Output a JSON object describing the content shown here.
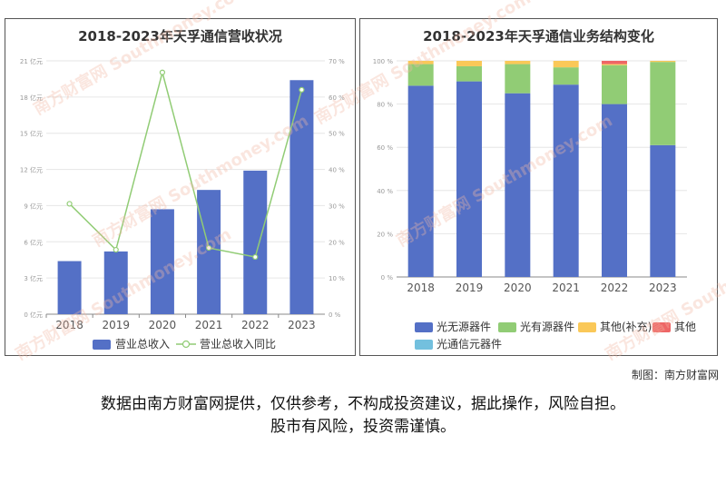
{
  "watermark": {
    "text_cn": "南方财富网",
    "text_en": "Southmoney.com"
  },
  "credit": "制图：南方财富网",
  "disclaimer_line1": "数据由南方财富网提供，仅供参考，不构成投资建议，据此操作，风险自担。",
  "disclaimer_line2": "股市有风险，投资需谨慎。",
  "chart_data": [
    {
      "type": "bar",
      "title": "2018-2023年天孚通信营收状况",
      "categories": [
        "2018",
        "2019",
        "2020",
        "2021",
        "2022",
        "2023"
      ],
      "ylim": [
        0,
        21
      ],
      "y2lim": [
        0,
        70
      ],
      "y_ticks": [
        0,
        3,
        6,
        9,
        12,
        15,
        18,
        21
      ],
      "y_tick_labels": [
        "0 亿元",
        "3 亿元",
        "6 亿元",
        "9 亿元",
        "12 亿元",
        "15 亿元",
        "18 亿元",
        "21 亿元"
      ],
      "y2_ticks": [
        0,
        10,
        20,
        30,
        40,
        50,
        60,
        70
      ],
      "y2_tick_labels": [
        "0 %",
        "10 %",
        "20 %",
        "30 %",
        "40 %",
        "50 %",
        "60 %",
        "70 %"
      ],
      "grid": true,
      "legend_position": "bottom",
      "series": [
        {
          "name": "营业总收入",
          "type": "bar",
          "axis": "left",
          "color": "#5470c6",
          "values": [
            4.4,
            5.2,
            8.7,
            10.3,
            11.9,
            19.4
          ]
        },
        {
          "name": "营业总收入同比",
          "type": "line",
          "axis": "right",
          "color": "#91cc75",
          "values": [
            30.5,
            17.8,
            66.8,
            18.3,
            15.8,
            62.0
          ]
        }
      ]
    },
    {
      "type": "bar",
      "stacked": true,
      "title": "2018-2023年天孚通信业务结构变化",
      "categories": [
        "2018",
        "2019",
        "2020",
        "2021",
        "2022",
        "2023"
      ],
      "ylim": [
        0,
        100
      ],
      "y_ticks": [
        0,
        20,
        40,
        60,
        80,
        100
      ],
      "y_tick_labels": [
        "0 %",
        "20 %",
        "40 %",
        "60 %",
        "80 %",
        "100 %"
      ],
      "grid": true,
      "legend_position": "bottom",
      "series": [
        {
          "name": "光无源器件",
          "color": "#5470c6",
          "values": [
            88.5,
            90.5,
            85.0,
            89.0,
            80.0,
            61.0
          ]
        },
        {
          "name": "光有源器件",
          "color": "#91cc75",
          "values": [
            10.0,
            7.0,
            13.5,
            8.0,
            18.0,
            38.5
          ]
        },
        {
          "name": "其他(补充)",
          "color": "#fac858",
          "values": [
            1.5,
            2.5,
            1.5,
            3.0,
            0.5,
            0.5
          ]
        },
        {
          "name": "其他",
          "color": "#ee6666",
          "values": [
            0,
            0,
            0,
            0,
            1.5,
            0
          ]
        },
        {
          "name": "光通信元器件",
          "color": "#73c0de",
          "values": [
            0,
            0,
            0,
            0,
            0,
            0
          ]
        }
      ]
    }
  ]
}
